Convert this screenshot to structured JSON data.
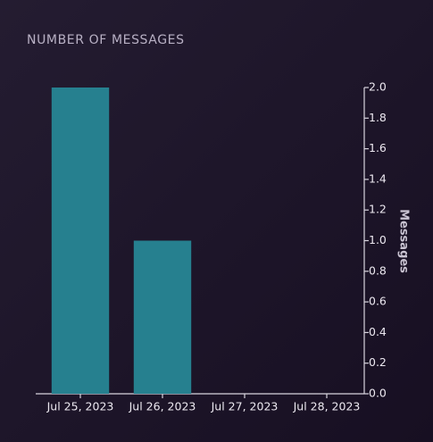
{
  "chart_data": {
    "type": "bar",
    "title": "NUMBER OF MESSAGES",
    "y_label": "Messages",
    "categories": [
      "Jul 25, 2023",
      "Jul 26, 2023",
      "Jul 27, 2023",
      "Jul 28, 2023"
    ],
    "values": [
      2,
      1,
      0,
      0
    ],
    "color": "#26808f",
    "ylim": [
      0,
      2
    ],
    "y_axis_side": "right",
    "yticks": [
      {
        "value": 0,
        "label": "0.0"
      },
      0.2,
      0.4,
      0.6,
      0.8,
      {
        "value": 1,
        "label": "1.0"
      },
      1.2,
      1.4,
      1.6,
      1.8,
      {
        "value": 2,
        "label": "2.0"
      }
    ],
    "grid": false
  }
}
